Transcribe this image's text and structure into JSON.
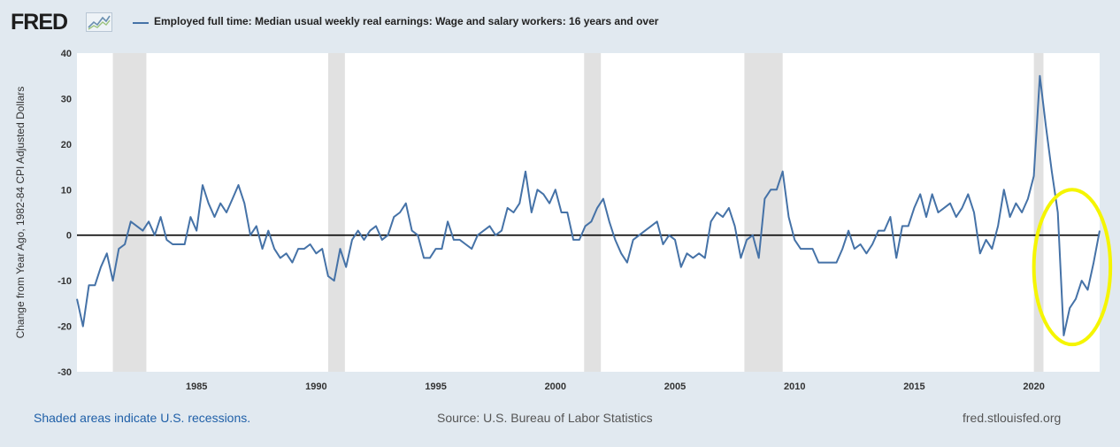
{
  "header": {
    "logo_text": "FRED",
    "series_title": "Employed full time: Median usual weekly real earnings: Wage and salary workers: 16 years and over"
  },
  "footer": {
    "note": "Shaded areas indicate U.S. recessions.",
    "source": "Source: U.S. Bureau of Labor Statistics",
    "site": "fred.stlouisfed.org"
  },
  "colors": {
    "line": "#4572a7",
    "recession": "#e1e1e1",
    "zero_line": "#000000",
    "annotation": "#f5f500",
    "frame": "#e1e9f0"
  },
  "chart_data": {
    "type": "line",
    "title": "Employed full time: Median usual weekly real earnings: Wage and salary workers: 16 years and over",
    "xlabel": "",
    "ylabel": "Change from Year Ago, 1982-84 CPI Adjusted Dollars",
    "xlim": [
      1980,
      2022.75
    ],
    "ylim": [
      -30,
      40
    ],
    "yticks": [
      -30,
      -20,
      -10,
      0,
      10,
      20,
      30,
      40
    ],
    "xticks": [
      1985,
      1990,
      1995,
      2000,
      2005,
      2010,
      2015,
      2020
    ],
    "grid": false,
    "zero_line": true,
    "recessions": [
      [
        1981.5,
        1982.9
      ],
      [
        1990.5,
        1991.2
      ],
      [
        2001.2,
        2001.9
      ],
      [
        2007.9,
        2009.5
      ],
      [
        2020.0,
        2020.4
      ]
    ],
    "annotation": {
      "shape": "ellipse",
      "center": [
        2021.6,
        -7
      ],
      "rx_years": 1.6,
      "ry_units": 17
    },
    "series": [
      {
        "x": [
          1980.0,
          1980.25,
          1980.5,
          1980.75,
          1981.0,
          1981.25,
          1981.5,
          1981.75,
          1982.0,
          1982.25,
          1982.5,
          1982.75,
          1983.0,
          1983.25,
          1983.5,
          1983.75,
          1984.0,
          1984.25,
          1984.5,
          1984.75,
          1985.0,
          1985.25,
          1985.5,
          1985.75,
          1986.0,
          1986.25,
          1986.5,
          1986.75,
          1987.0,
          1987.25,
          1987.5,
          1987.75,
          1988.0,
          1988.25,
          1988.5,
          1988.75,
          1989.0,
          1989.25,
          1989.5,
          1989.75,
          1990.0,
          1990.25,
          1990.5,
          1990.75,
          1991.0,
          1991.25,
          1991.5,
          1991.75,
          1992.0,
          1992.25,
          1992.5,
          1992.75,
          1993.0,
          1993.25,
          1993.5,
          1993.75,
          1994.0,
          1994.25,
          1994.5,
          1994.75,
          1995.0,
          1995.25,
          1995.5,
          1995.75,
          1996.0,
          1996.25,
          1996.5,
          1996.75,
          1997.0,
          1997.25,
          1997.5,
          1997.75,
          1998.0,
          1998.25,
          1998.5,
          1998.75,
          1999.0,
          1999.25,
          1999.5,
          1999.75,
          2000.0,
          2000.25,
          2000.5,
          2000.75,
          2001.0,
          2001.25,
          2001.5,
          2001.75,
          2002.0,
          2002.25,
          2002.5,
          2002.75,
          2003.0,
          2003.25,
          2003.5,
          2003.75,
          2004.0,
          2004.25,
          2004.5,
          2004.75,
          2005.0,
          2005.25,
          2005.5,
          2005.75,
          2006.0,
          2006.25,
          2006.5,
          2006.75,
          2007.0,
          2007.25,
          2007.5,
          2007.75,
          2008.0,
          2008.25,
          2008.5,
          2008.75,
          2009.0,
          2009.25,
          2009.5,
          2009.75,
          2010.0,
          2010.25,
          2010.5,
          2010.75,
          2011.0,
          2011.25,
          2011.5,
          2011.75,
          2012.0,
          2012.25,
          2012.5,
          2012.75,
          2013.0,
          2013.25,
          2013.5,
          2013.75,
          2014.0,
          2014.25,
          2014.5,
          2014.75,
          2015.0,
          2015.25,
          2015.5,
          2015.75,
          2016.0,
          2016.25,
          2016.5,
          2016.75,
          2017.0,
          2017.25,
          2017.5,
          2017.75,
          2018.0,
          2018.25,
          2018.5,
          2018.75,
          2019.0,
          2019.25,
          2019.5,
          2019.75,
          2020.0,
          2020.25,
          2020.5,
          2020.75,
          2021.0,
          2021.25,
          2021.5,
          2021.75,
          2022.0,
          2022.25,
          2022.5,
          2022.75
        ],
        "values": [
          -14,
          -20,
          -11,
          -11,
          -7,
          -4,
          -10,
          -3,
          -2,
          3,
          2,
          1,
          3,
          0,
          4,
          -1,
          -2,
          -2,
          -2,
          4,
          1,
          11,
          7,
          4,
          7,
          5,
          8,
          11,
          7,
          0,
          2,
          -3,
          1,
          -3,
          -5,
          -4,
          -6,
          -3,
          -3,
          -2,
          -4,
          -3,
          -9,
          -10,
          -3,
          -7,
          -1,
          1,
          -1,
          1,
          2,
          -1,
          0,
          4,
          5,
          7,
          1,
          0,
          -5,
          -5,
          -3,
          -3,
          3,
          -1,
          -1,
          -2,
          -3,
          0,
          1,
          2,
          0,
          1,
          6,
          5,
          7,
          14,
          5,
          10,
          9,
          7,
          10,
          5,
          5,
          -1,
          -1,
          2,
          3,
          6,
          8,
          3,
          -1,
          -4,
          -6,
          -1,
          0,
          1,
          2,
          3,
          -2,
          0,
          -1,
          -7,
          -4,
          -5,
          -4,
          -5,
          3,
          5,
          4,
          6,
          2,
          -5,
          -1,
          0,
          -5,
          8,
          10,
          10,
          14,
          4,
          -1,
          -3,
          -3,
          -3,
          -6,
          -6,
          -6,
          -6,
          -3,
          1,
          -3,
          -2,
          -4,
          -2,
          1,
          1,
          4,
          -5,
          2,
          2,
          6,
          9,
          4,
          9,
          5,
          6,
          7,
          4,
          6,
          9,
          5,
          -4,
          -1,
          -3,
          2,
          10,
          4,
          7,
          5,
          8,
          13,
          35,
          24,
          14,
          5,
          -22,
          -16,
          -14,
          -10,
          -12,
          -6,
          1
        ]
      }
    ]
  }
}
